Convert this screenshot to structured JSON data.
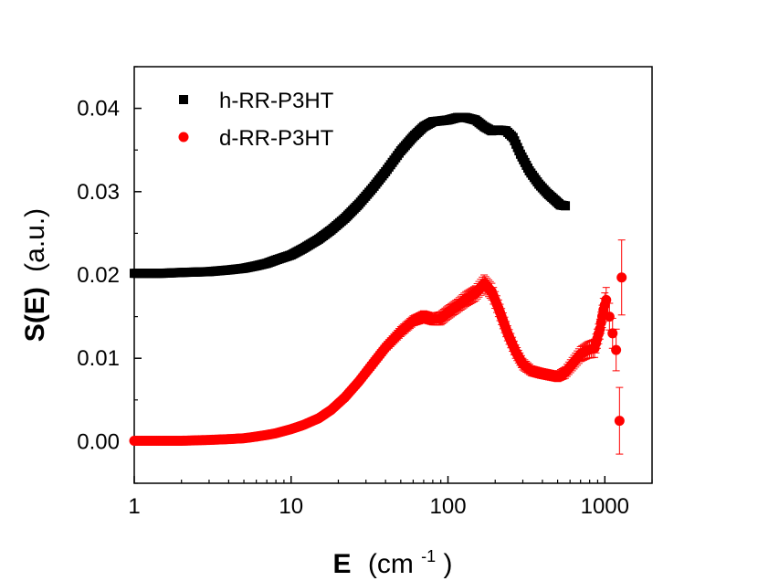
{
  "chart_data": {
    "type": "scatter",
    "title": "",
    "xlabel_main": "E",
    "xlabel_unit_prefix": "(cm",
    "xlabel_unit_exp": "-1",
    "xlabel_unit_suffix": ")",
    "ylabel_main": "S(E)",
    "ylabel_unit": "(a.u.)",
    "xscale": "log",
    "xlim": [
      1,
      2000
    ],
    "ylim": [
      -0.005,
      0.045
    ],
    "xticks": [
      {
        "value": 1,
        "label": "1"
      },
      {
        "value": 10,
        "label": "10"
      },
      {
        "value": 100,
        "label": "100"
      },
      {
        "value": 1000,
        "label": "1000"
      }
    ],
    "yticks": [
      {
        "value": 0.0,
        "label": "0.00"
      },
      {
        "value": 0.01,
        "label": "0.01"
      },
      {
        "value": 0.02,
        "label": "0.02"
      },
      {
        "value": 0.03,
        "label": "0.03"
      },
      {
        "value": 0.04,
        "label": "0.04"
      }
    ],
    "legend_position": "top-left",
    "series": [
      {
        "name": "h-RR-P3HT",
        "marker": "square",
        "color": "#000000",
        "points": [
          [
            1.0,
            0.0202
          ],
          [
            1.5,
            0.0202
          ],
          [
            2.0,
            0.0203
          ],
          [
            3.0,
            0.0204
          ],
          [
            4.0,
            0.0206
          ],
          [
            5.0,
            0.0208
          ],
          [
            6.0,
            0.0211
          ],
          [
            7.0,
            0.0214
          ],
          [
            8.0,
            0.0218
          ],
          [
            10.0,
            0.0224
          ],
          [
            12.0,
            0.0232
          ],
          [
            15.0,
            0.0243
          ],
          [
            18.0,
            0.0254
          ],
          [
            22.0,
            0.0268
          ],
          [
            27.0,
            0.0285
          ],
          [
            33.0,
            0.0304
          ],
          [
            40.0,
            0.0324
          ],
          [
            50.0,
            0.0349
          ],
          [
            60.0,
            0.0366
          ],
          [
            70.0,
            0.0378
          ],
          [
            80.0,
            0.0384
          ],
          [
            90.0,
            0.0385
          ],
          [
            100.0,
            0.0386
          ],
          [
            115.0,
            0.0389
          ],
          [
            130.0,
            0.0389
          ],
          [
            150.0,
            0.0386
          ],
          [
            170.0,
            0.0378
          ],
          [
            190.0,
            0.0373
          ],
          [
            210.0,
            0.0374
          ],
          [
            235.0,
            0.0373
          ],
          [
            260.0,
            0.0365
          ],
          [
            290.0,
            0.0345
          ],
          [
            330.0,
            0.0325
          ],
          [
            380.0,
            0.0309
          ],
          [
            430.0,
            0.0298
          ],
          [
            480.0,
            0.029
          ],
          [
            520.0,
            0.0284
          ],
          [
            560.0,
            0.0283
          ]
        ]
      },
      {
        "name": "d-RR-P3HT",
        "marker": "circle",
        "color": "#ff0000",
        "points": [
          [
            1.0,
            0.0001,
            0.0002
          ],
          [
            1.5,
            0.0001,
            0.0002
          ],
          [
            2.0,
            0.0001,
            0.0002
          ],
          [
            3.0,
            0.0002,
            0.0002
          ],
          [
            4.0,
            0.0003,
            0.0002
          ],
          [
            5.0,
            0.0004,
            0.0002
          ],
          [
            6.0,
            0.0006,
            0.0002
          ],
          [
            7.0,
            0.0008,
            0.0002
          ],
          [
            8.0,
            0.001,
            0.0003
          ],
          [
            10.0,
            0.0015,
            0.0003
          ],
          [
            12.0,
            0.002,
            0.0003
          ],
          [
            15.0,
            0.0028,
            0.0003
          ],
          [
            18.0,
            0.0038,
            0.0003
          ],
          [
            22.0,
            0.0053,
            0.0004
          ],
          [
            27.0,
            0.0072,
            0.0004
          ],
          [
            33.0,
            0.0093,
            0.0005
          ],
          [
            40.0,
            0.0113,
            0.0005
          ],
          [
            50.0,
            0.0132,
            0.0006
          ],
          [
            60.0,
            0.0145,
            0.0006
          ],
          [
            70.0,
            0.015,
            0.0007
          ],
          [
            80.0,
            0.0147,
            0.0007
          ],
          [
            90.0,
            0.0148,
            0.0008
          ],
          [
            100.0,
            0.0155,
            0.0008
          ],
          [
            115.0,
            0.0163,
            0.0008
          ],
          [
            130.0,
            0.0171,
            0.0009
          ],
          [
            150.0,
            0.0178,
            0.0009
          ],
          [
            170.0,
            0.019,
            0.001
          ],
          [
            190.0,
            0.018,
            0.001
          ],
          [
            210.0,
            0.016,
            0.001
          ],
          [
            240.0,
            0.013,
            0.0009
          ],
          [
            270.0,
            0.0108,
            0.0008
          ],
          [
            300.0,
            0.0093,
            0.0007
          ],
          [
            340.0,
            0.0085,
            0.0006
          ],
          [
            390.0,
            0.0082,
            0.0006
          ],
          [
            440.0,
            0.008,
            0.0006
          ],
          [
            500.0,
            0.0078,
            0.0006
          ],
          [
            560.0,
            0.0083,
            0.0007
          ],
          [
            620.0,
            0.0093,
            0.0008
          ],
          [
            700.0,
            0.0105,
            0.0009
          ],
          [
            780.0,
            0.011,
            0.001
          ],
          [
            860.0,
            0.0112,
            0.0011
          ],
          [
            930.0,
            0.0135,
            0.0012
          ],
          [
            980.0,
            0.0158,
            0.0014
          ],
          [
            1020.0,
            0.017,
            0.0015
          ],
          [
            1070.0,
            0.015,
            0.0016
          ],
          [
            1120.0,
            0.013,
            0.0018
          ],
          [
            1180.0,
            0.011,
            0.0025
          ],
          [
            1240.0,
            0.0025,
            0.004
          ],
          [
            1280.0,
            0.0197,
            0.0045
          ]
        ]
      }
    ]
  }
}
